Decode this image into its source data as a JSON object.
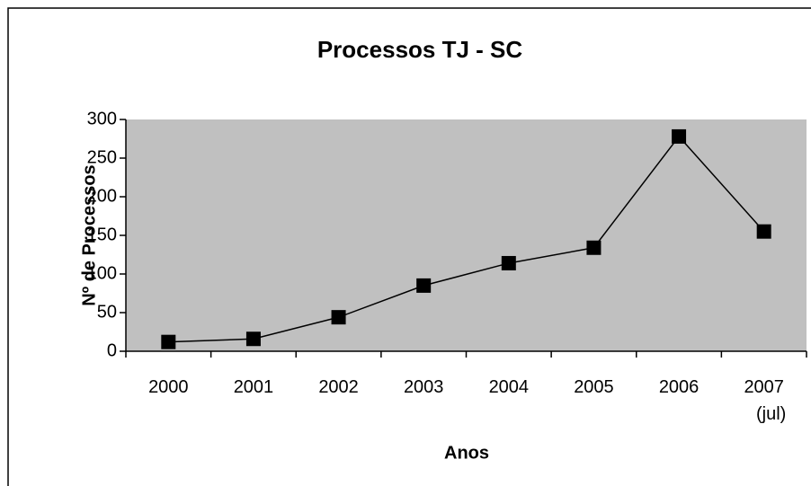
{
  "chart_data": {
    "type": "line",
    "title": "Processos TJ - SC",
    "xlabel": "Anos",
    "ylabel": "Nº de Processos",
    "categories": [
      "2000",
      "2001",
      "2002",
      "2003",
      "2004",
      "2005",
      "2006",
      "2007\n(jul)"
    ],
    "series": [
      {
        "name": "Processos",
        "color": "#000000",
        "values": [
          12,
          16,
          44,
          85,
          114,
          134,
          278,
          155
        ]
      }
    ],
    "ylim": [
      0,
      300
    ],
    "yticks": [
      0,
      50,
      100,
      150,
      200,
      250,
      300
    ],
    "plot_background": "#c0c0c0",
    "grid": false
  }
}
